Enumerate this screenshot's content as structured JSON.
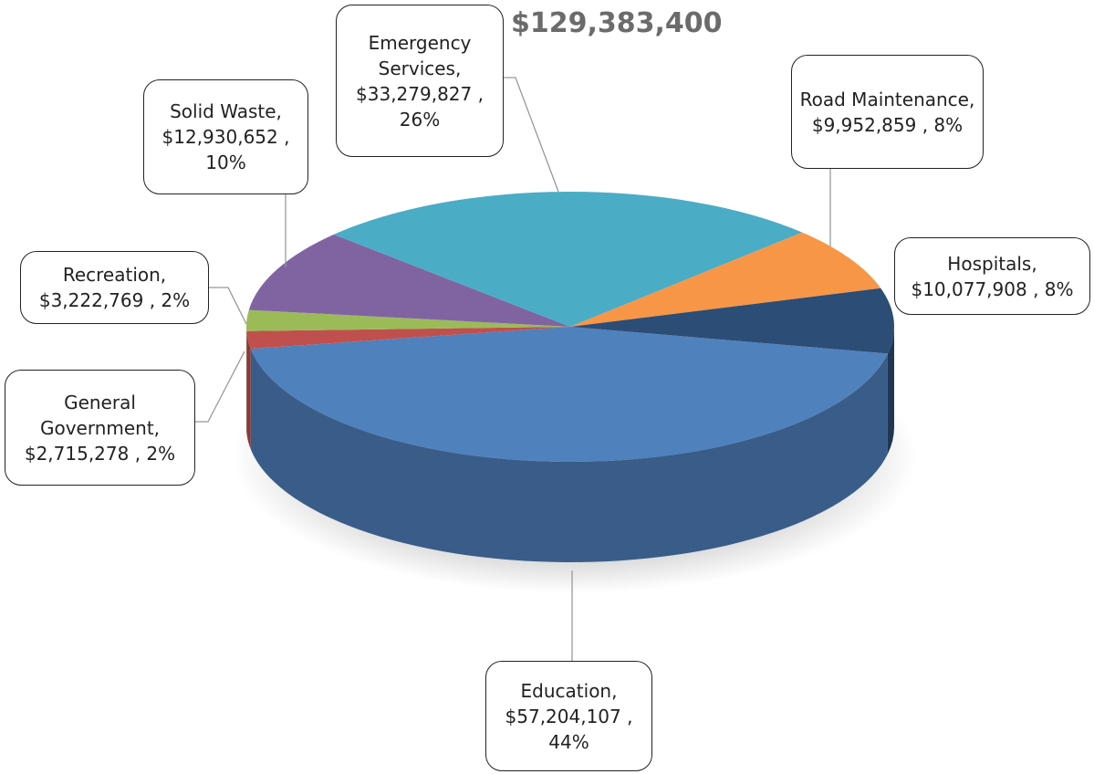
{
  "chart_data": {
    "type": "pie",
    "title": "$129,383,400",
    "categories": [
      "Education,",
      "General Government,",
      "Recreation,",
      "Solid Waste,",
      "Emergency Services,",
      "Road Maintenance,",
      "Hospitals,"
    ],
    "values": [
      57204107,
      2715278,
      3222769,
      12930652,
      33279827,
      9952859,
      10077908
    ],
    "value_labels": [
      "$57,204,107 , 44%",
      "$2,715,278 , 2%",
      "$3,222,769 , 2%",
      "$12,930,652 , 10%",
      "$33,279,827 , 26%",
      "$9,952,859 , 8%",
      "$10,077,908 , 8%"
    ],
    "colors": [
      "#4f81bd",
      "#c0504d",
      "#9bbb59",
      "#8064a2",
      "#4bacc6",
      "#f79646",
      "#2c4d75"
    ]
  }
}
